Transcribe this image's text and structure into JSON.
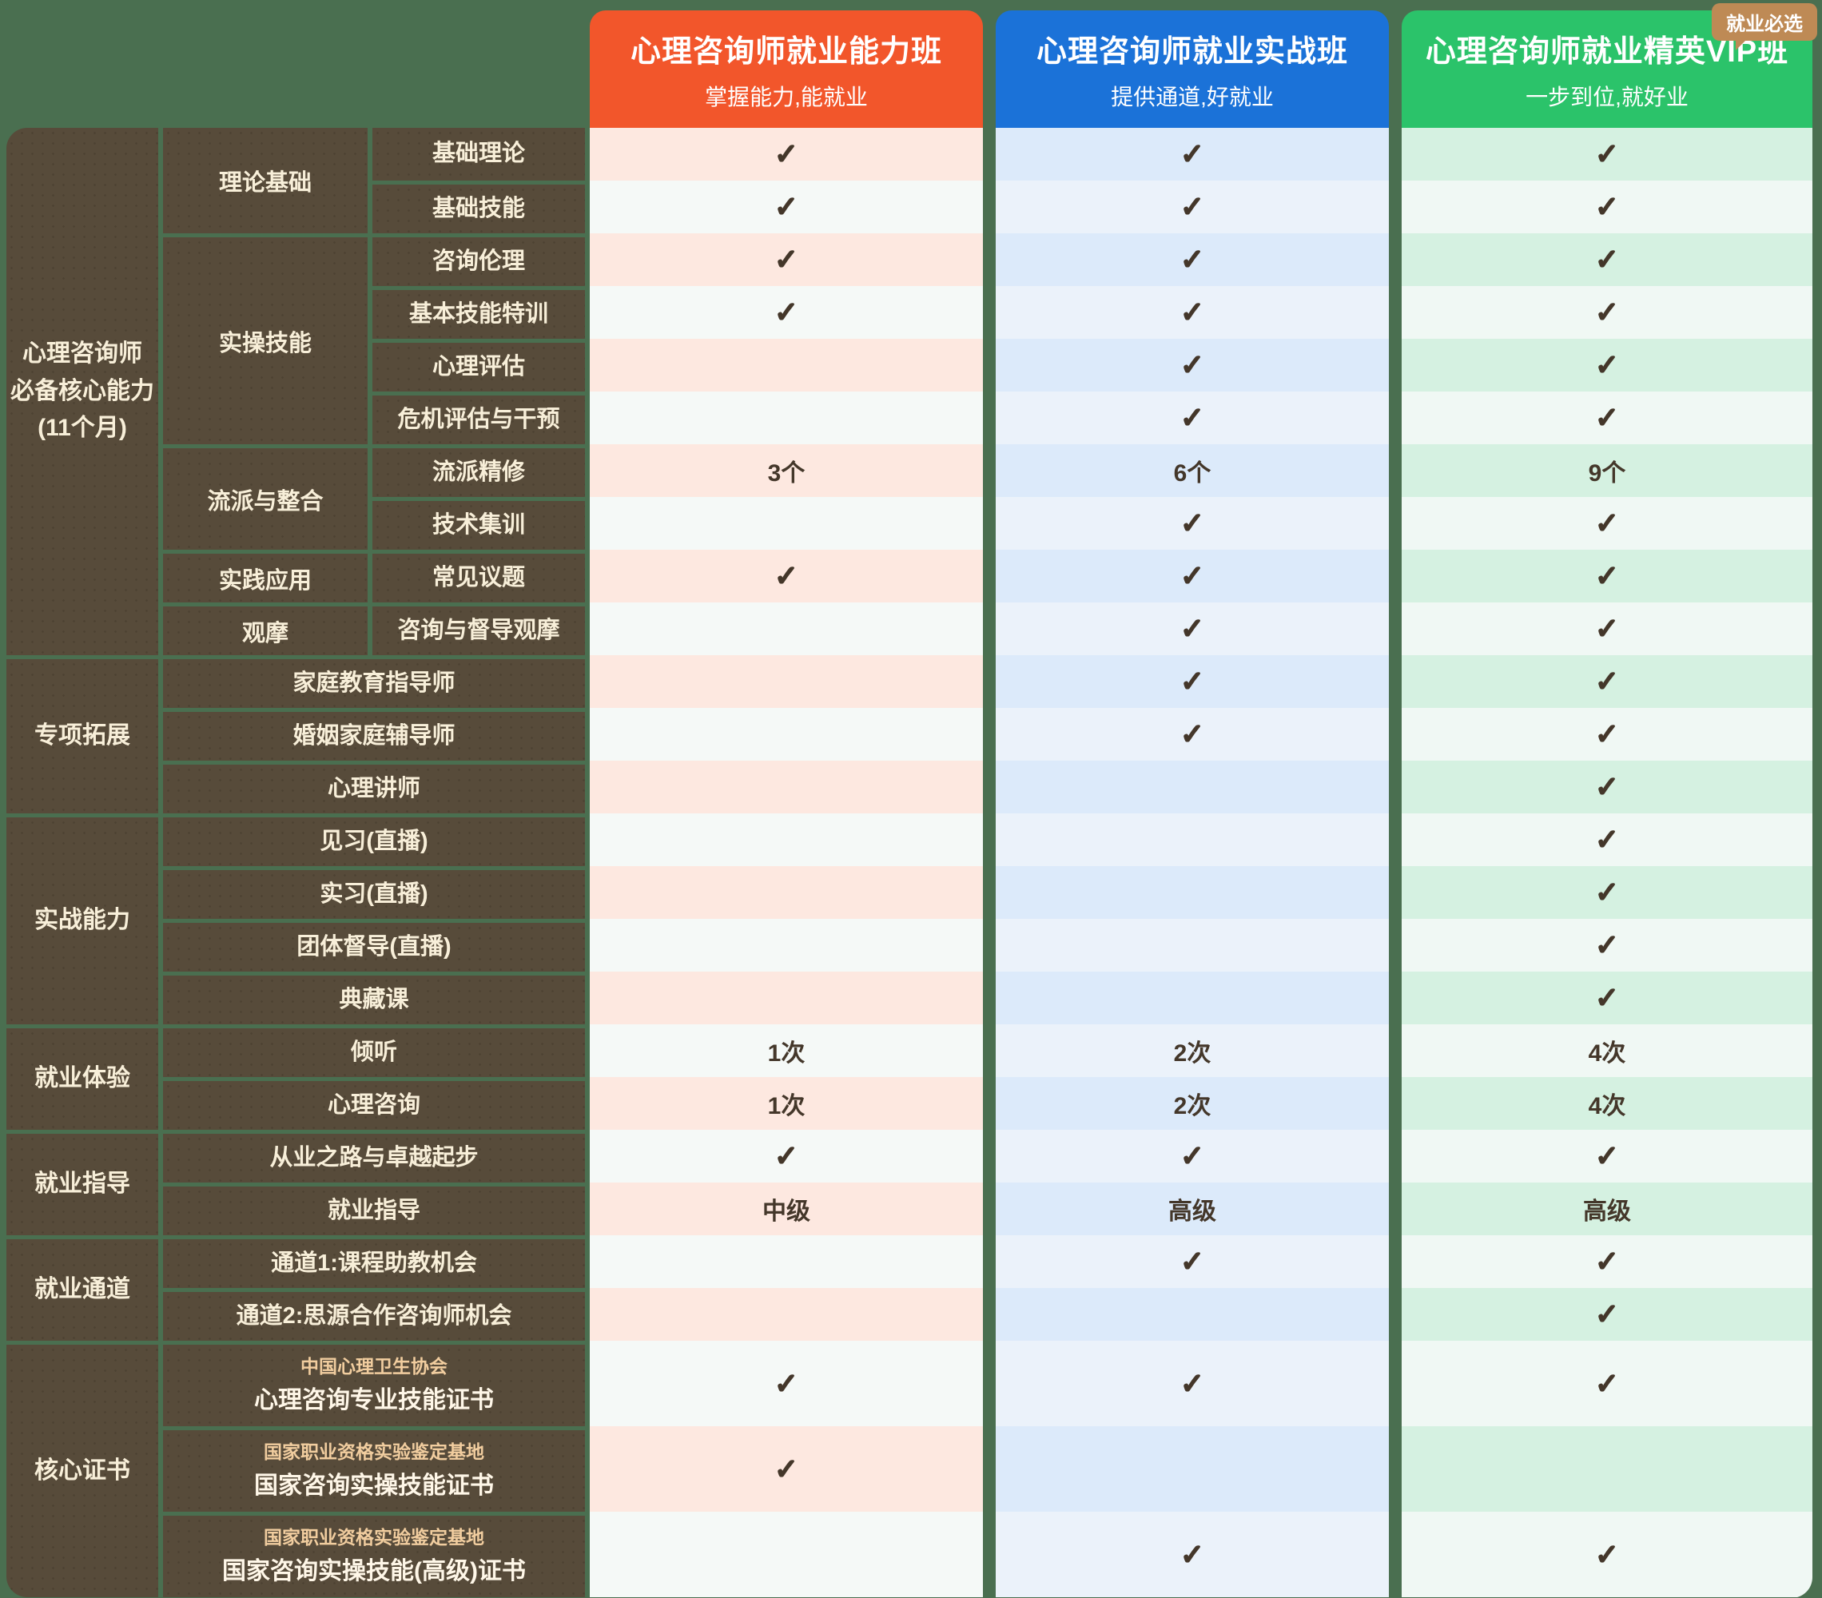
{
  "badge": "就业必选",
  "colors": {
    "background": "#4A6F50",
    "panel_brown": "#574B3A",
    "text_cream": "#F8EFD9",
    "check_brown": "#44372A",
    "badge_tan": "#BE8A55"
  },
  "plans": [
    {
      "title": "心理咨询师就业能力班",
      "subtitle": "掌握能力,能就业",
      "header_color": "#F2562B",
      "row_tint": "#FDE8E0",
      "row_plain": "#F5F9F7"
    },
    {
      "title": "心理咨询师就业实战班",
      "subtitle": "提供通道,好就业",
      "header_color": "#1B72D8",
      "row_tint": "#DCEAFA",
      "row_plain": "#EBF2FA"
    },
    {
      "title": "心理咨询师就业精英VIP班",
      "subtitle": "一步到位,就好业",
      "header_color": "#2BC36A",
      "row_tint": "#D5F1E1",
      "row_plain": "#F0F8F4"
    }
  ],
  "sections": [
    {
      "category": "心理咨询师必备核心能力(11个月)",
      "category_lines": [
        "心理咨询师",
        "必备核心能力",
        "(11个月)"
      ],
      "groups": [
        {
          "label": "理论基础",
          "items": [
            {
              "label": "基础理论",
              "values": [
                "✓",
                "✓",
                "✓"
              ]
            },
            {
              "label": "基础技能",
              "values": [
                "✓",
                "✓",
                "✓"
              ]
            }
          ]
        },
        {
          "label": "实操技能",
          "items": [
            {
              "label": "咨询伦理",
              "values": [
                "✓",
                "✓",
                "✓"
              ]
            },
            {
              "label": "基本技能特训",
              "values": [
                "✓",
                "✓",
                "✓"
              ]
            },
            {
              "label": "心理评估",
              "values": [
                "",
                "✓",
                "✓"
              ]
            },
            {
              "label": "危机评估与干预",
              "values": [
                "",
                "✓",
                "✓"
              ]
            }
          ]
        },
        {
          "label": "流派与整合",
          "items": [
            {
              "label": "流派精修",
              "values": [
                "3个",
                "6个",
                "9个"
              ]
            },
            {
              "label": "技术集训",
              "values": [
                "",
                "✓",
                "✓"
              ]
            }
          ]
        },
        {
          "label": "实践应用",
          "items": [
            {
              "label": "常见议题",
              "values": [
                "✓",
                "✓",
                "✓"
              ]
            }
          ]
        },
        {
          "label": "观摩",
          "items": [
            {
              "label": "咨询与督导观摩",
              "values": [
                "",
                "✓",
                "✓"
              ]
            }
          ]
        }
      ]
    },
    {
      "category": "专项拓展",
      "items": [
        {
          "label": "家庭教育指导师",
          "values": [
            "",
            "✓",
            "✓"
          ]
        },
        {
          "label": "婚姻家庭辅导师",
          "values": [
            "",
            "✓",
            "✓"
          ]
        },
        {
          "label": "心理讲师",
          "values": [
            "",
            "",
            "✓"
          ]
        }
      ]
    },
    {
      "category": "实战能力",
      "items": [
        {
          "label": "见习(直播)",
          "values": [
            "",
            "",
            "✓"
          ]
        },
        {
          "label": "实习(直播)",
          "values": [
            "",
            "",
            "✓"
          ]
        },
        {
          "label": "团体督导(直播)",
          "values": [
            "",
            "",
            "✓"
          ]
        },
        {
          "label": "典藏课",
          "values": [
            "",
            "",
            "✓"
          ]
        }
      ]
    },
    {
      "category": "就业体验",
      "items": [
        {
          "label": "倾听",
          "values": [
            "1次",
            "2次",
            "4次"
          ]
        },
        {
          "label": "心理咨询",
          "values": [
            "1次",
            "2次",
            "4次"
          ]
        }
      ]
    },
    {
      "category": "就业指导",
      "items": [
        {
          "label": "从业之路与卓越起步",
          "values": [
            "✓",
            "✓",
            "✓"
          ]
        },
        {
          "label": "就业指导",
          "values": [
            "中级",
            "高级",
            "高级"
          ]
        }
      ]
    },
    {
      "category": "就业通道",
      "items": [
        {
          "label": "通道1:课程助教机会",
          "values": [
            "",
            "✓",
            "✓"
          ]
        },
        {
          "label": "通道2:思源合作咨询师机会",
          "values": [
            "",
            "",
            "✓"
          ]
        }
      ]
    },
    {
      "category": "核心证书",
      "items": [
        {
          "label_small": "中国心理卫生协会",
          "label": "心理咨询专业技能证书",
          "values": [
            "✓",
            "✓",
            "✓"
          ]
        },
        {
          "label_small": "国家职业资格实验鉴定基地",
          "label": "国家咨询实操技能证书",
          "values": [
            "✓",
            "",
            ""
          ]
        },
        {
          "label_small": "国家职业资格实验鉴定基地",
          "label": "国家咨询实操技能(高级)证书",
          "values": [
            "",
            "✓",
            "✓"
          ]
        }
      ]
    }
  ]
}
